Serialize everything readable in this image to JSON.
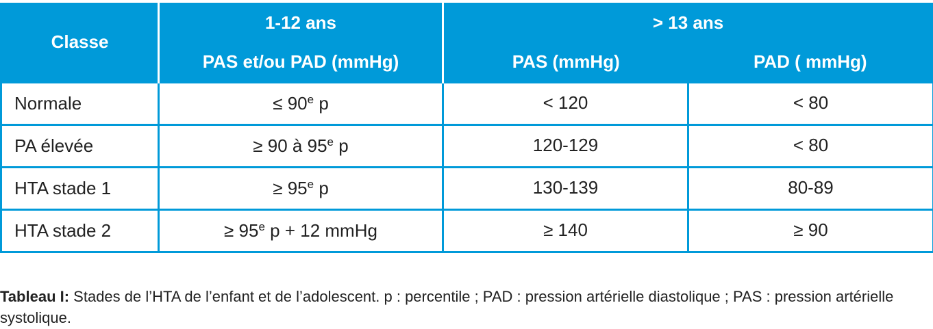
{
  "table": {
    "header": {
      "class": "Classe",
      "group1": "1-12 ans",
      "group1_sub": "PAS et/ou PAD (mmHg)",
      "group2": "> 13 ans",
      "group2_subs": [
        "PAS (mmHg)",
        "PAD ( mmHg)"
      ]
    },
    "rows": [
      [
        "Normale",
        {
          "text": "≤ 90",
          "sup": "e",
          "after": " p"
        },
        "< 120",
        "< 80"
      ],
      [
        "PA élevée",
        {
          "text": "≥ 90 à 95",
          "sup": "e",
          "after": " p"
        },
        "120-129",
        "< 80"
      ],
      [
        "HTA stade 1",
        {
          "text": "≥ 95",
          "sup": "e",
          "after": " p"
        },
        "130-139",
        "80-89"
      ],
      [
        "HTA stade 2",
        {
          "text": "≥ 95",
          "sup": "e",
          "after": " p + 12 mmHg"
        },
        "≥ 140",
        "≥ 90"
      ]
    ]
  },
  "caption": {
    "label": "Tableau I:",
    "text": " Stades de l’HTA de l’enfant et de l’adolescent. p : percentile ; PAD : pression artérielle diastolique ; PAS : pression artérielle systolique."
  }
}
